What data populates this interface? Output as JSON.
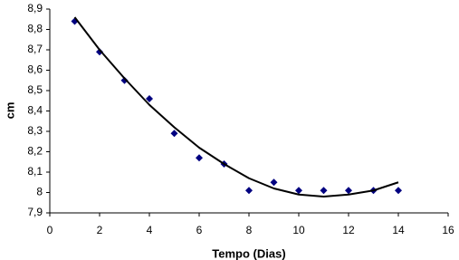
{
  "chart_data": {
    "type": "scatter",
    "x_label": "Tempo (Dias)",
    "y_label": "cm",
    "x": [
      1,
      2,
      3,
      4,
      5,
      6,
      7,
      8,
      9,
      10,
      11,
      12,
      13,
      14
    ],
    "series": [
      {
        "color": "#000080",
        "marker": "diamond",
        "values": [
          8.84,
          8.69,
          8.55,
          8.46,
          8.29,
          8.17,
          8.14,
          8.01,
          8.05,
          8.01,
          8.01,
          8.01,
          8.01,
          8.01
        ]
      },
      {
        "color": "#000000",
        "marker": "line",
        "values": [
          8.86,
          8.7,
          8.56,
          8.43,
          8.32,
          8.22,
          8.14,
          8.07,
          8.02,
          7.99,
          7.98,
          7.99,
          8.01,
          8.05
        ]
      }
    ],
    "xlim": [
      0,
      16
    ],
    "xticks": [
      0,
      2,
      4,
      6,
      8,
      10,
      12,
      14,
      16
    ],
    "ylim": [
      7.9,
      8.9
    ],
    "yticks": [
      {
        "value": 7.9,
        "label": "7,9"
      },
      8,
      {
        "value": 8.1,
        "label": "8,1"
      },
      {
        "value": 8.2,
        "label": "8,2"
      },
      {
        "value": 8.3,
        "label": "8,3"
      },
      {
        "value": 8.4,
        "label": "8,4"
      },
      {
        "value": 8.5,
        "label": "8,5"
      },
      {
        "value": 8.6,
        "label": "8,6"
      },
      {
        "value": 8.7,
        "label": "8,7"
      },
      {
        "value": 8.8,
        "label": "8,8"
      },
      {
        "value": 8.9,
        "label": "8,9"
      }
    ],
    "grid": false
  }
}
